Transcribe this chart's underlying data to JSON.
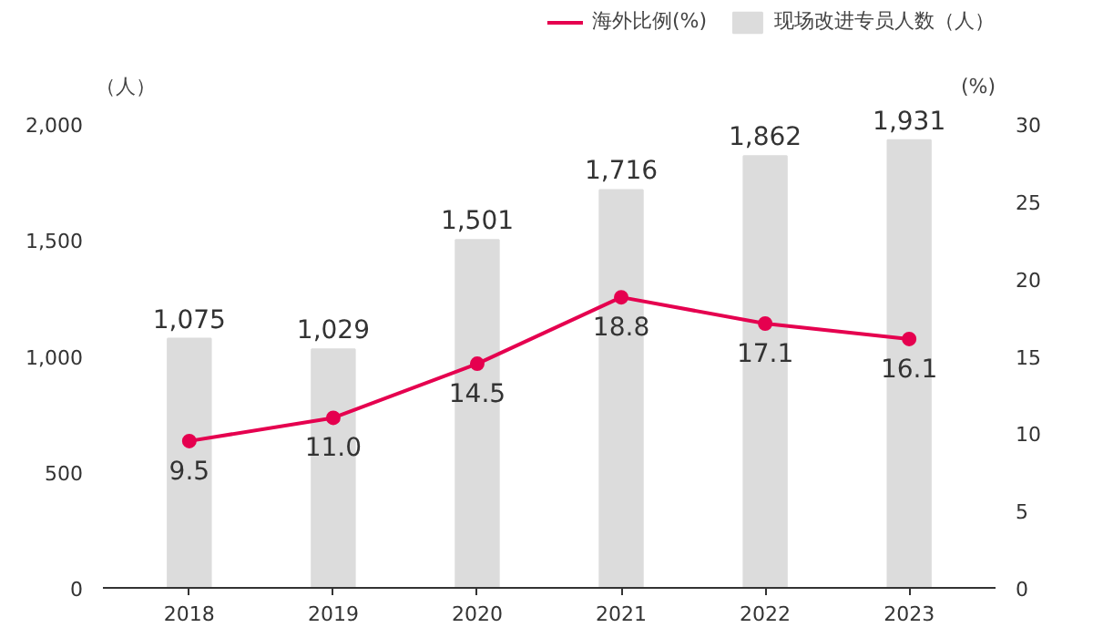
{
  "chart_data": {
    "type": "bar",
    "categories": [
      "2018",
      "2019",
      "2020",
      "2021",
      "2022",
      "2023"
    ],
    "ylabel": "（人）",
    "y2label": "(%)",
    "ylim": [
      0,
      2500
    ],
    "yticks": [
      0,
      {
        "value": 500,
        "label": "500"
      },
      {
        "value": 1000,
        "label": "1,000"
      },
      {
        "value": 1500,
        "label": "1,500"
      },
      {
        "value": 2000,
        "label": "2,000"
      }
    ],
    "y2lim": [
      0,
      37.5
    ],
    "y2ticks": [
      0,
      5,
      10,
      15,
      20,
      25,
      30
    ],
    "legend": "top right",
    "grid": false,
    "series": [
      {
        "name": "海外比例(%)",
        "type": "line",
        "axis": "y2",
        "color": "#e5004f",
        "marker": "circle",
        "values": [
          9.5,
          11.0,
          14.5,
          18.8,
          17.1,
          16.1
        ],
        "value_labels": [
          "9.5",
          "11.0",
          "14.5",
          "18.8",
          "17.1",
          "16.1"
        ]
      },
      {
        "name": "现场改进专员人数（人）",
        "color": "#dcdcdc",
        "values": [
          1075,
          1029,
          1501,
          1716,
          1862,
          1931
        ],
        "value_labels": [
          "1,075",
          "1,029",
          "1,501",
          "1,716",
          "1,862",
          "1,931"
        ]
      }
    ]
  }
}
